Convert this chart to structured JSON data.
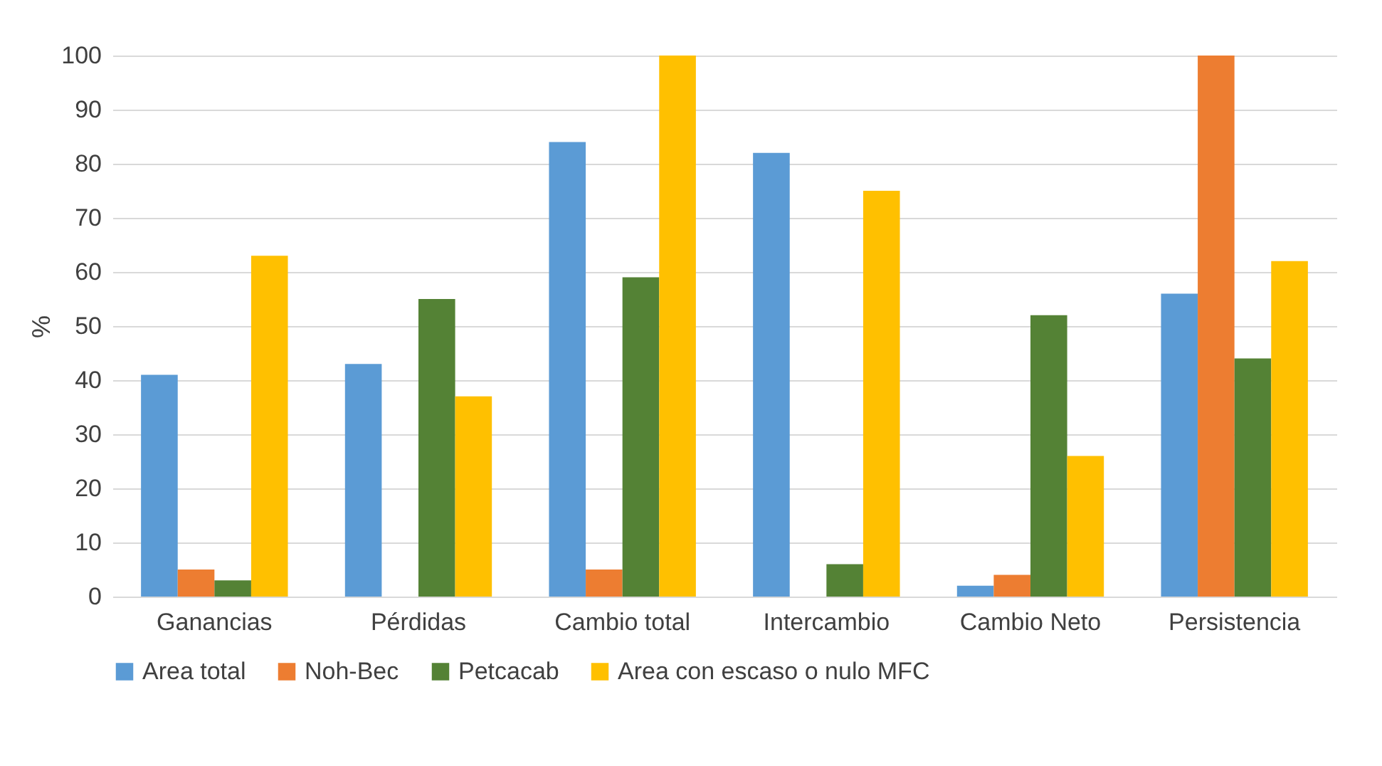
{
  "chart_data": {
    "type": "bar",
    "ylabel": "%",
    "categories": [
      "Ganancias",
      "Pérdidas",
      "Cambio total",
      "Intercambio",
      "Cambio Neto",
      "Persistencia"
    ],
    "series": [
      {
        "name": "Area total",
        "color": "#5b9bd5",
        "values": [
          41,
          43,
          84,
          82,
          2,
          56
        ]
      },
      {
        "name": "Noh-Bec",
        "color": "#ed7d31",
        "values": [
          5,
          0,
          5,
          0,
          4,
          100
        ]
      },
      {
        "name": "Petcacab",
        "color": "#548235",
        "values": [
          3,
          55,
          59,
          6,
          52,
          44
        ]
      },
      {
        "name": "Area con escaso o nulo MFC",
        "color": "#ffc000",
        "values": [
          63,
          37,
          100,
          75,
          26,
          62
        ]
      }
    ],
    "ylim": [
      0,
      100
    ],
    "yticks": [
      0,
      10,
      20,
      30,
      40,
      50,
      60,
      70,
      80,
      90,
      100
    ],
    "grid": "y",
    "legend": "bottom"
  }
}
